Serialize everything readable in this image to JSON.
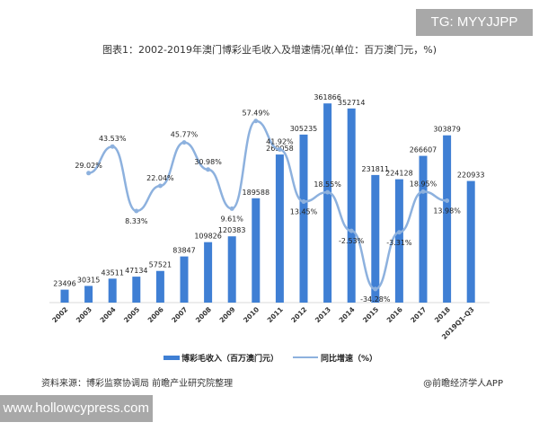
{
  "watermarks": {
    "top_right": "TG: MYYJJPP",
    "bottom_left": "www.hollowcypress.com"
  },
  "source": "资料来源：博彩监察协调局 前瞻产业研究院整理",
  "brand": "@前瞻经济学人APP",
  "chart_data": {
    "type": "bar+line",
    "title": "图表1：2002-2019年澳门博彩业毛收入及增速情况(单位：百万澳门元，%)",
    "categories": [
      "2002",
      "2003",
      "2004",
      "2005",
      "2006",
      "2007",
      "2008",
      "2009",
      "2010",
      "2011",
      "2012",
      "2013",
      "2014",
      "2015",
      "2016",
      "2017",
      "2018",
      "2019Q1-Q3"
    ],
    "series": [
      {
        "name": "博彩毛收入（百万澳门元）",
        "type": "bar",
        "color": "#3f7fd4",
        "values": [
          23496,
          30315,
          43511,
          47134,
          57521,
          83847,
          109826,
          120383,
          189588,
          269058,
          305235,
          361866,
          352714,
          231811,
          224128,
          266607,
          303879,
          220933
        ]
      },
      {
        "name": "同比增速（%）",
        "type": "line",
        "color": "#8db1de",
        "values": [
          null,
          29.02,
          43.53,
          8.33,
          22.04,
          45.77,
          30.98,
          9.61,
          57.49,
          41.92,
          13.45,
          18.55,
          -2.53,
          -34.28,
          -3.31,
          18.95,
          13.98,
          null
        ],
        "labels": [
          "",
          "29.02%",
          "43.53%",
          "8.33%",
          "22.04%",
          "45.77%",
          "30.98%",
          "9.61%",
          "57.49%",
          "41.92%",
          "13.45%",
          "18.55%",
          "-2.53%",
          "-34.28%",
          "-3.31%",
          "18.95%",
          "13.98%",
          ""
        ]
      }
    ],
    "legend": "bottom",
    "grid": false
  }
}
